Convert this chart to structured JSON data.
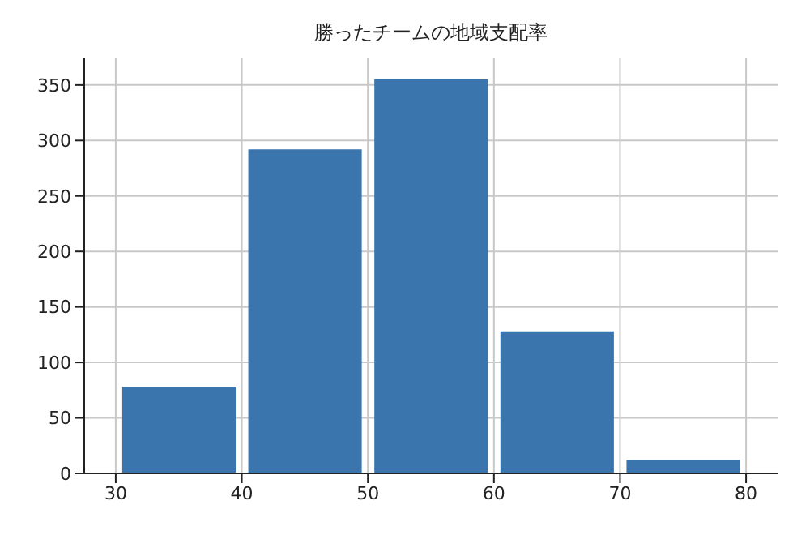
{
  "chart_data": {
    "type": "histogram",
    "title": "勝ったチームの地域支配率",
    "bins": [
      30,
      40,
      50,
      60,
      70,
      80
    ],
    "values": [
      78,
      292,
      355,
      128,
      12
    ],
    "color": "#3a75ae",
    "xlim": [
      27.5,
      82.5
    ],
    "xticks": [
      30,
      40,
      50,
      60,
      70,
      80
    ],
    "ylim": [
      0,
      374
    ],
    "yticks": [
      0,
      50,
      100,
      150,
      200,
      250,
      300,
      350
    ],
    "grid": true
  }
}
